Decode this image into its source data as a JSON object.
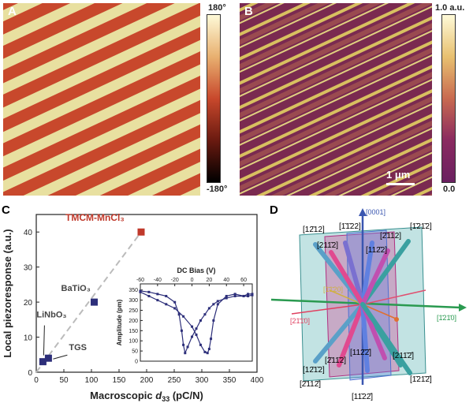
{
  "panels": {
    "a": {
      "label": "A",
      "colorbar_top": "180°",
      "colorbar_bottom": "-180°"
    },
    "b": {
      "label": "B",
      "colorbar_top": "1.0 a.u.",
      "colorbar_bottom": "0.0",
      "scalebar": "1 μm"
    },
    "c": {
      "label": "C"
    },
    "d": {
      "label": "D"
    }
  },
  "chart_data": [
    {
      "type": "scatter",
      "xlabel_prefix": "Macroscopic ",
      "xlabel_sym": "d",
      "xlabel_sub": "33",
      "xlabel_suffix": " (pC/N)",
      "ylabel": "Local piezoresponse (a.u.)",
      "xlim": [
        0,
        400
      ],
      "ylim": [
        0,
        45
      ],
      "xticks": [
        0,
        50,
        100,
        150,
        200,
        250,
        300,
        350,
        400
      ],
      "yticks": [
        0,
        10,
        20,
        30,
        40
      ],
      "points": [
        {
          "name": "TMCM-MnCl3",
          "label": "TMCM-MnCl₃",
          "x": 190,
          "y": 40,
          "color": "#c0392b"
        },
        {
          "name": "BaTiO3",
          "label": "BaTiO₃",
          "x": 105,
          "y": 20,
          "color": "#2d2f7a"
        },
        {
          "name": "LiNbO3",
          "label": "LiNbO₃",
          "x": 12,
          "y": 3,
          "color": "#2d2f7a"
        },
        {
          "name": "TGS",
          "label": "TGS",
          "x": 22,
          "y": 4,
          "color": "#2d2f7a"
        }
      ]
    },
    {
      "type": "line",
      "title": "DC Bias (V)",
      "ylabel": "Amplitude (pm)",
      "xlim": [
        -60,
        70
      ],
      "ylim": [
        0,
        380
      ],
      "xticks": [
        -60,
        -40,
        -20,
        0,
        20,
        40,
        60
      ],
      "yticks": [
        0,
        50,
        100,
        150,
        200,
        250,
        300,
        350
      ],
      "series": [
        {
          "x": [
            -60,
            -50,
            -40,
            -30,
            -20,
            -15,
            -12,
            -10,
            -8,
            -5,
            0,
            5,
            10,
            15,
            20,
            25,
            30,
            40,
            50,
            60,
            65,
            70
          ],
          "y": [
            345,
            340,
            330,
            320,
            290,
            230,
            150,
            80,
            40,
            70,
            120,
            160,
            200,
            230,
            260,
            280,
            295,
            310,
            320,
            320,
            330,
            330
          ]
        },
        {
          "x": [
            -60,
            -50,
            -40,
            -30,
            -20,
            -10,
            0,
            5,
            10,
            15,
            18,
            20,
            22,
            25,
            30,
            40,
            50,
            60,
            65,
            70
          ],
          "y": [
            340,
            320,
            300,
            280,
            260,
            220,
            170,
            130,
            80,
            45,
            40,
            60,
            110,
            200,
            280,
            320,
            330,
            320,
            320,
            325
          ]
        }
      ]
    }
  ],
  "diagram": {
    "axis_top": "[0001]",
    "axis_right": "[1̄21̄0]",
    "axis_left": "[21̄1̄0]",
    "axis_inner": "[1̄1̄20]",
    "top_labels": [
      "[12̄12]",
      "[1̄1̄22]",
      "[1̄21̄2]",
      "[2̄112]",
      "[211̄2]",
      "[112̄2]",
      "[2̄11̄2]"
    ],
    "bottom_labels": [
      "[12̄1̄2]",
      "[2̄11̄2]",
      "[112̄2̄]",
      "[211̄2̄]",
      "[11̄22̄]",
      "[1̄21̄2̄]",
      "[2̄112̄]"
    ]
  }
}
